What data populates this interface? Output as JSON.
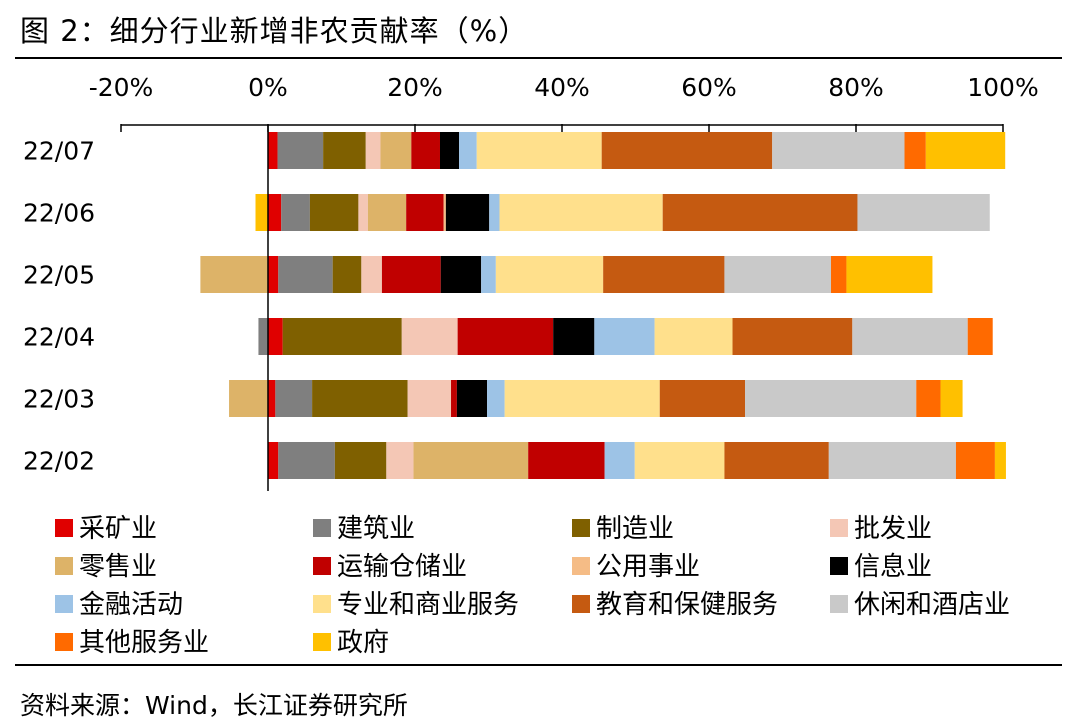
{
  "title": "图 2：细分行业新增非农贡献率（%）",
  "source": "资料来源：Wind，长江证券研究所",
  "chart_data": {
    "type": "bar",
    "orientation": "horizontal",
    "stacked": true,
    "xlim": [
      -20,
      100
    ],
    "x_ticks": [
      "-20%",
      "0%",
      "20%",
      "40%",
      "60%",
      "80%",
      "100%"
    ],
    "x_tick_values": [
      -20,
      0,
      20,
      40,
      60,
      80,
      100
    ],
    "grid": false,
    "legend_position": "bottom",
    "categories": [
      "22/07",
      "22/06",
      "22/05",
      "22/04",
      "22/03",
      "22/02"
    ],
    "series": [
      {
        "name": "采矿业",
        "color": "#E00000",
        "values": [
          1.3,
          1.8,
          1.4,
          2.0,
          1.0,
          1.4
        ]
      },
      {
        "name": "建筑业",
        "color": "#7F7F7F",
        "values": [
          6.2,
          3.9,
          7.4,
          -1.3,
          5.0,
          7.7
        ]
      },
      {
        "name": "制造业",
        "color": "#7F6000",
        "values": [
          5.8,
          6.6,
          3.9,
          16.2,
          13.0,
          7.0
        ]
      },
      {
        "name": "批发业",
        "color": "#F4C7B5",
        "values": [
          2.0,
          1.3,
          2.8,
          7.6,
          5.9,
          3.7
        ]
      },
      {
        "name": "零售业",
        "color": "#DDB368",
        "values": [
          4.2,
          5.2,
          -9.2,
          0,
          -5.3,
          15.6
        ]
      },
      {
        "name": "运输仓储业",
        "color": "#C00000",
        "values": [
          3.9,
          5.1,
          8.0,
          13.0,
          0.8,
          10.4
        ]
      },
      {
        "name": "公用事业",
        "color": "#F5BC86",
        "values": [
          0,
          0.3,
          0,
          0,
          0,
          0
        ]
      },
      {
        "name": "信息业",
        "color": "#000000",
        "values": [
          2.6,
          5.9,
          5.5,
          5.6,
          4.1,
          0
        ]
      },
      {
        "name": "金融活动",
        "color": "#9DC3E6",
        "values": [
          2.4,
          1.4,
          2.0,
          8.2,
          2.4,
          4.1
        ]
      },
      {
        "name": "专业和商业服务",
        "color": "#FFE08C",
        "values": [
          17.0,
          22.2,
          14.6,
          10.6,
          21.1,
          12.2
        ]
      },
      {
        "name": "教育和保健服务",
        "color": "#C55A11",
        "values": [
          23.2,
          26.5,
          16.5,
          16.3,
          11.6,
          14.2
        ]
      },
      {
        "name": "休闲和酒店业",
        "color": "#C9C9C9",
        "values": [
          18.0,
          18.0,
          14.5,
          15.7,
          23.3,
          17.3
        ]
      },
      {
        "name": "其他服务业",
        "color": "#FF6A00",
        "values": [
          2.9,
          0,
          2.1,
          3.4,
          3.3,
          5.3
        ]
      },
      {
        "name": "政府",
        "color": "#FFC000",
        "values": [
          10.8,
          -1.7,
          11.7,
          0,
          3.0,
          1.5
        ]
      }
    ]
  }
}
